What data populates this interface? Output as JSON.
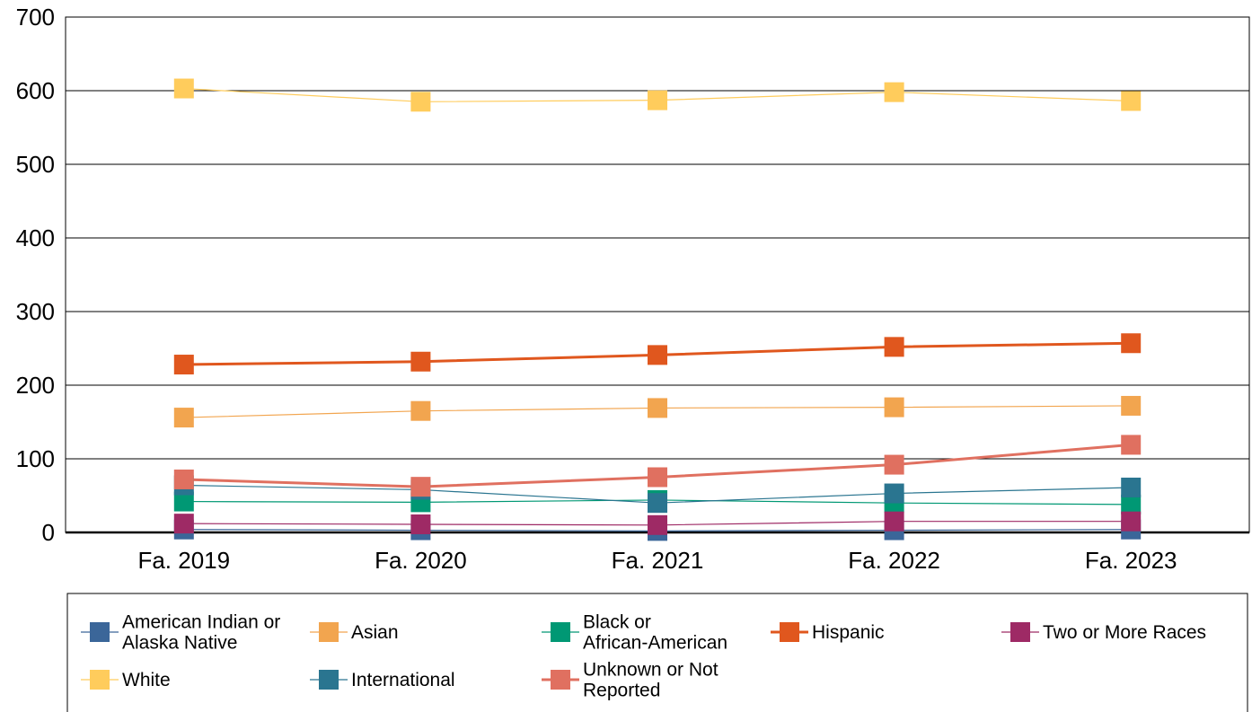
{
  "chart_data": {
    "type": "line",
    "title": "",
    "xlabel": "",
    "ylabel": "",
    "categories": [
      "Fa. 2019",
      "Fa. 2020",
      "Fa. 2021",
      "Fa. 2022",
      "Fa. 2023"
    ],
    "ylim": [
      0,
      700
    ],
    "yticks": [
      0,
      100,
      200,
      300,
      400,
      500,
      600,
      700
    ],
    "grid": true,
    "legend_position": "bottom",
    "series": [
      {
        "name": "American Indian or Alaska Native",
        "color": "#3B6699",
        "values": [
          4,
          3,
          2,
          3,
          4
        ],
        "thick": false
      },
      {
        "name": "Asian",
        "color": "#F2A54F",
        "values": [
          156,
          165,
          169,
          170,
          172
        ],
        "thick": false
      },
      {
        "name": "Black or African-American",
        "color": "#009874",
        "values": [
          42,
          41,
          44,
          40,
          38
        ],
        "thick": false
      },
      {
        "name": "Hispanic",
        "color": "#E0571E",
        "values": [
          228,
          232,
          241,
          252,
          257
        ],
        "thick": true
      },
      {
        "name": "Two or More Races",
        "color": "#9E2A65",
        "values": [
          12,
          11,
          10,
          15,
          15
        ],
        "thick": false
      },
      {
        "name": "White",
        "color": "#FFCC5C",
        "values": [
          603,
          585,
          587,
          598,
          586
        ],
        "thick": false
      },
      {
        "name": "International",
        "color": "#2A7590",
        "values": [
          64,
          58,
          40,
          53,
          61
        ],
        "thick": false
      },
      {
        "name": "Unknown or Not Reported",
        "color": "#E07060",
        "values": [
          72,
          62,
          75,
          92,
          119
        ],
        "thick": true
      }
    ]
  }
}
